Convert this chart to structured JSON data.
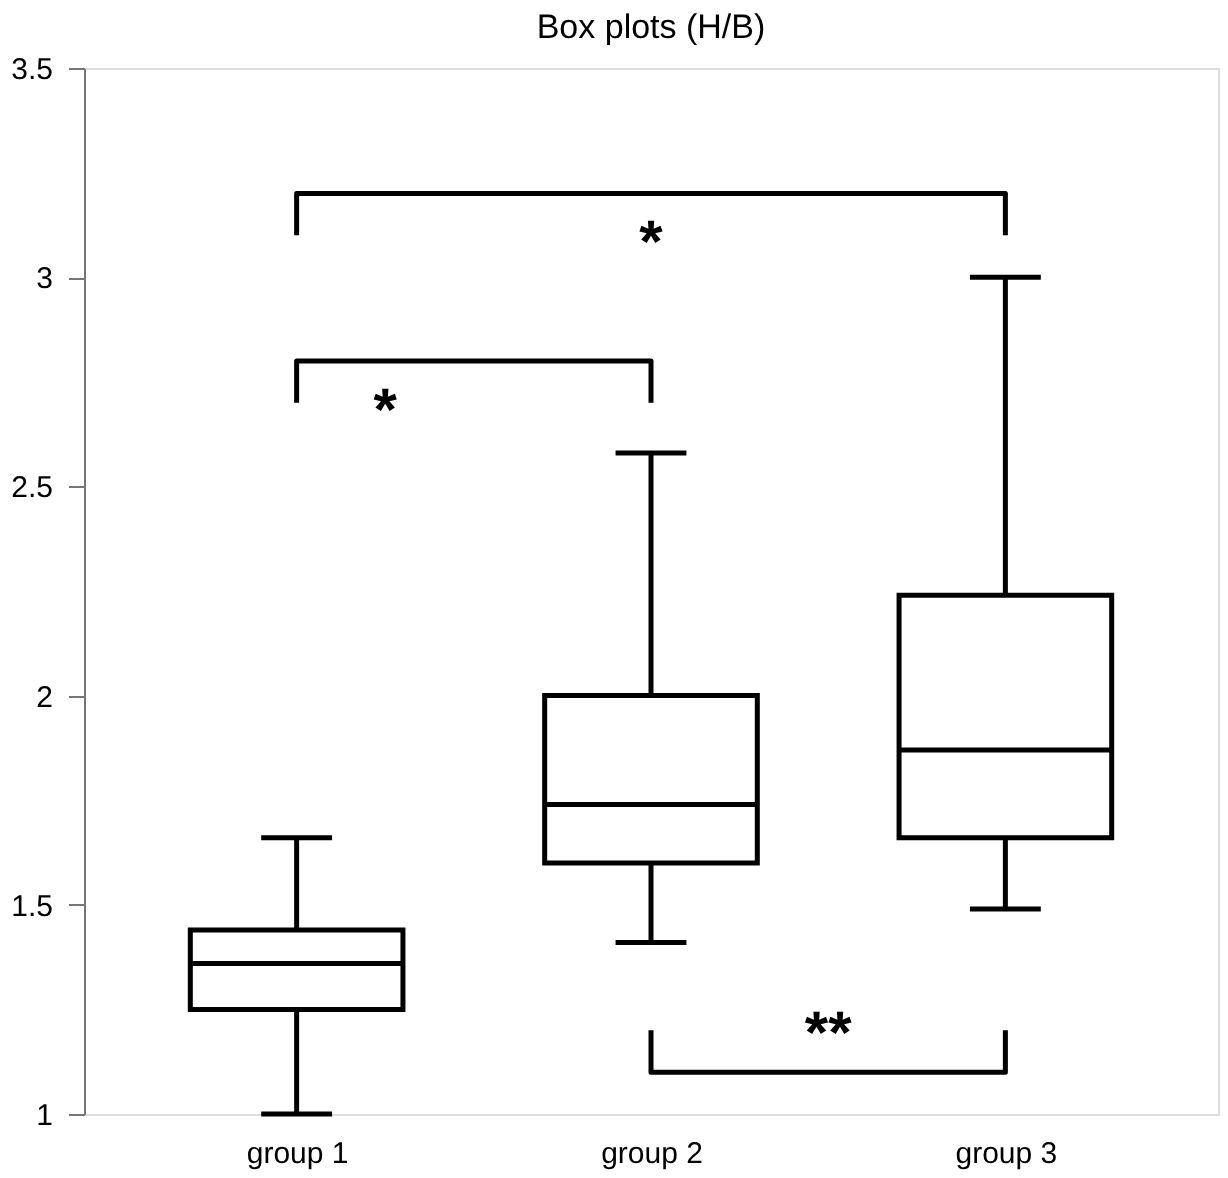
{
  "chart_data": {
    "type": "box",
    "title": "Box plots (H/B)",
    "categories": [
      "group 1",
      "group 2",
      "group 3"
    ],
    "boxes": [
      {
        "low": 1.0,
        "q1": 1.25,
        "median": 1.36,
        "q3": 1.44,
        "high": 1.66
      },
      {
        "low": 1.41,
        "q1": 1.6,
        "median": 1.74,
        "q3": 2.0,
        "high": 2.58
      },
      {
        "low": 1.49,
        "q1": 1.66,
        "median": 1.87,
        "q3": 2.24,
        "high": 3.0
      }
    ],
    "color": "#000000",
    "ylim": [
      1,
      3.5
    ],
    "yticks": [
      1,
      1.5,
      2,
      2.5,
      3,
      3.5
    ],
    "grid": false,
    "annotations": [
      "*",
      "*",
      "**"
    ]
  }
}
